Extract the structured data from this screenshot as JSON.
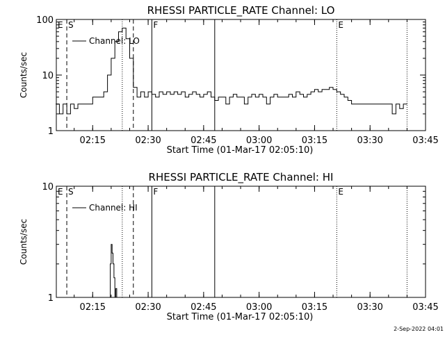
{
  "footer": {
    "timestamp": "2-Sep-2022 04:01"
  },
  "chart_data": [
    {
      "type": "line",
      "title": "RHESSI PARTICLE_RATE Channel: LO",
      "xlabel": "Start Time (01-Mar-17 02:05:10)",
      "ylabel": "Counts/sec",
      "y_scale": "log",
      "ylim": [
        1,
        100
      ],
      "xlim_minutes_after_0200": [
        5.17,
        105
      ],
      "xticks": [
        "02:15",
        "02:30",
        "02:45",
        "03:00",
        "03:15",
        "03:30",
        "03:45"
      ],
      "yticks": [
        "1",
        "10",
        "100"
      ],
      "legend": {
        "entries": [
          "Channel: LO"
        ],
        "placement": "top-left"
      },
      "markers": [
        {
          "label": "E",
          "time": "02:05:10",
          "style": "none"
        },
        {
          "label": "S",
          "time": "02:08",
          "style": "dashed"
        },
        {
          "label": "",
          "time": "02:23",
          "style": "dotted"
        },
        {
          "label": "",
          "time": "02:26",
          "style": "dashed"
        },
        {
          "label": "F",
          "time": "02:31",
          "style": "solid"
        },
        {
          "label": "",
          "time": "02:48",
          "style": "solid"
        },
        {
          "label": "E",
          "time": "03:21",
          "style": "dotted"
        },
        {
          "label": "",
          "time": "03:40",
          "style": "dotted"
        }
      ],
      "series": [
        {
          "name": "Channel: LO",
          "x": [
            "02:05",
            "02:06",
            "02:07",
            "02:08",
            "02:09",
            "02:10",
            "02:11",
            "02:12",
            "02:13",
            "02:14",
            "02:15",
            "02:16",
            "02:17",
            "02:18",
            "02:19",
            "02:20",
            "02:21",
            "02:22",
            "02:23",
            "02:24",
            "02:25",
            "02:26",
            "02:27",
            "02:28",
            "02:29",
            "02:30",
            "02:31",
            "02:32",
            "02:33",
            "02:34",
            "02:35",
            "02:36",
            "02:37",
            "02:38",
            "02:39",
            "02:40",
            "02:41",
            "02:42",
            "02:43",
            "02:44",
            "02:45",
            "02:46",
            "02:47",
            "02:48",
            "02:49",
            "02:50",
            "02:51",
            "02:52",
            "02:53",
            "02:54",
            "02:55",
            "02:56",
            "02:57",
            "02:58",
            "02:59",
            "03:00",
            "03:01",
            "03:02",
            "03:03",
            "03:04",
            "03:05",
            "03:06",
            "03:07",
            "03:08",
            "03:09",
            "03:10",
            "03:11",
            "03:12",
            "03:13",
            "03:14",
            "03:15",
            "03:16",
            "03:17",
            "03:18",
            "03:19",
            "03:20",
            "03:21",
            "03:22",
            "03:23",
            "03:24",
            "03:25",
            "03:26",
            "03:27",
            "03:28",
            "03:29",
            "03:30",
            "03:31",
            "03:32",
            "03:33",
            "03:34",
            "03:35",
            "03:36",
            "03:37",
            "03:38",
            "03:39"
          ],
          "values": [
            3,
            2,
            3,
            2,
            3,
            2.5,
            3,
            3,
            3,
            3,
            4,
            4,
            4,
            5,
            10,
            20,
            40,
            60,
            70,
            45,
            20,
            6,
            4,
            5,
            4,
            5,
            4.5,
            4,
            5,
            4.5,
            5,
            4.5,
            5,
            4.5,
            5,
            4,
            4.5,
            5,
            4.5,
            4,
            4.5,
            5,
            4,
            3.5,
            4,
            4,
            3,
            4,
            4.5,
            4,
            4,
            3,
            4,
            4.5,
            4,
            4.5,
            4,
            3,
            4,
            4.5,
            4,
            4,
            4,
            4.5,
            4,
            5,
            4.5,
            4,
            4.5,
            5,
            5.5,
            5,
            5.5,
            5.5,
            6,
            5.5,
            5,
            4.5,
            4,
            3.5,
            3,
            3,
            3,
            3,
            3,
            3,
            3,
            3,
            3,
            3,
            3,
            2,
            3,
            2.5,
            3
          ]
        }
      ]
    },
    {
      "type": "line",
      "title": "RHESSI PARTICLE_RATE Channel: HI",
      "xlabel": "Start Time (01-Mar-17 02:05:10)",
      "ylabel": "Counts/sec",
      "y_scale": "log",
      "ylim": [
        1,
        10
      ],
      "xlim_minutes_after_0200": [
        5.17,
        105
      ],
      "xticks": [
        "02:15",
        "02:30",
        "02:45",
        "03:00",
        "03:15",
        "03:30",
        "03:45"
      ],
      "yticks": [
        "1",
        "10"
      ],
      "legend": {
        "entries": [
          "Channel: HI"
        ],
        "placement": "top-left"
      },
      "markers": [
        {
          "label": "E",
          "time": "02:05:10",
          "style": "none"
        },
        {
          "label": "S",
          "time": "02:08",
          "style": "dashed"
        },
        {
          "label": "",
          "time": "02:23",
          "style": "dotted"
        },
        {
          "label": "",
          "time": "02:26",
          "style": "dashed"
        },
        {
          "label": "F",
          "time": "02:31",
          "style": "solid"
        },
        {
          "label": "",
          "time": "02:48",
          "style": "solid"
        },
        {
          "label": "E",
          "time": "03:21",
          "style": "dotted"
        },
        {
          "label": "",
          "time": "03:40",
          "style": "dotted"
        }
      ],
      "series": [
        {
          "name": "Channel: HI",
          "x": [
            "02:19:30",
            "02:19:45",
            "02:20:00",
            "02:20:15",
            "02:20:30",
            "02:20:45",
            "02:21:00",
            "02:21:15",
            "02:21:30"
          ],
          "values": [
            1,
            2,
            3,
            2.5,
            2,
            1.5,
            1,
            1.2,
            1
          ]
        }
      ]
    }
  ]
}
